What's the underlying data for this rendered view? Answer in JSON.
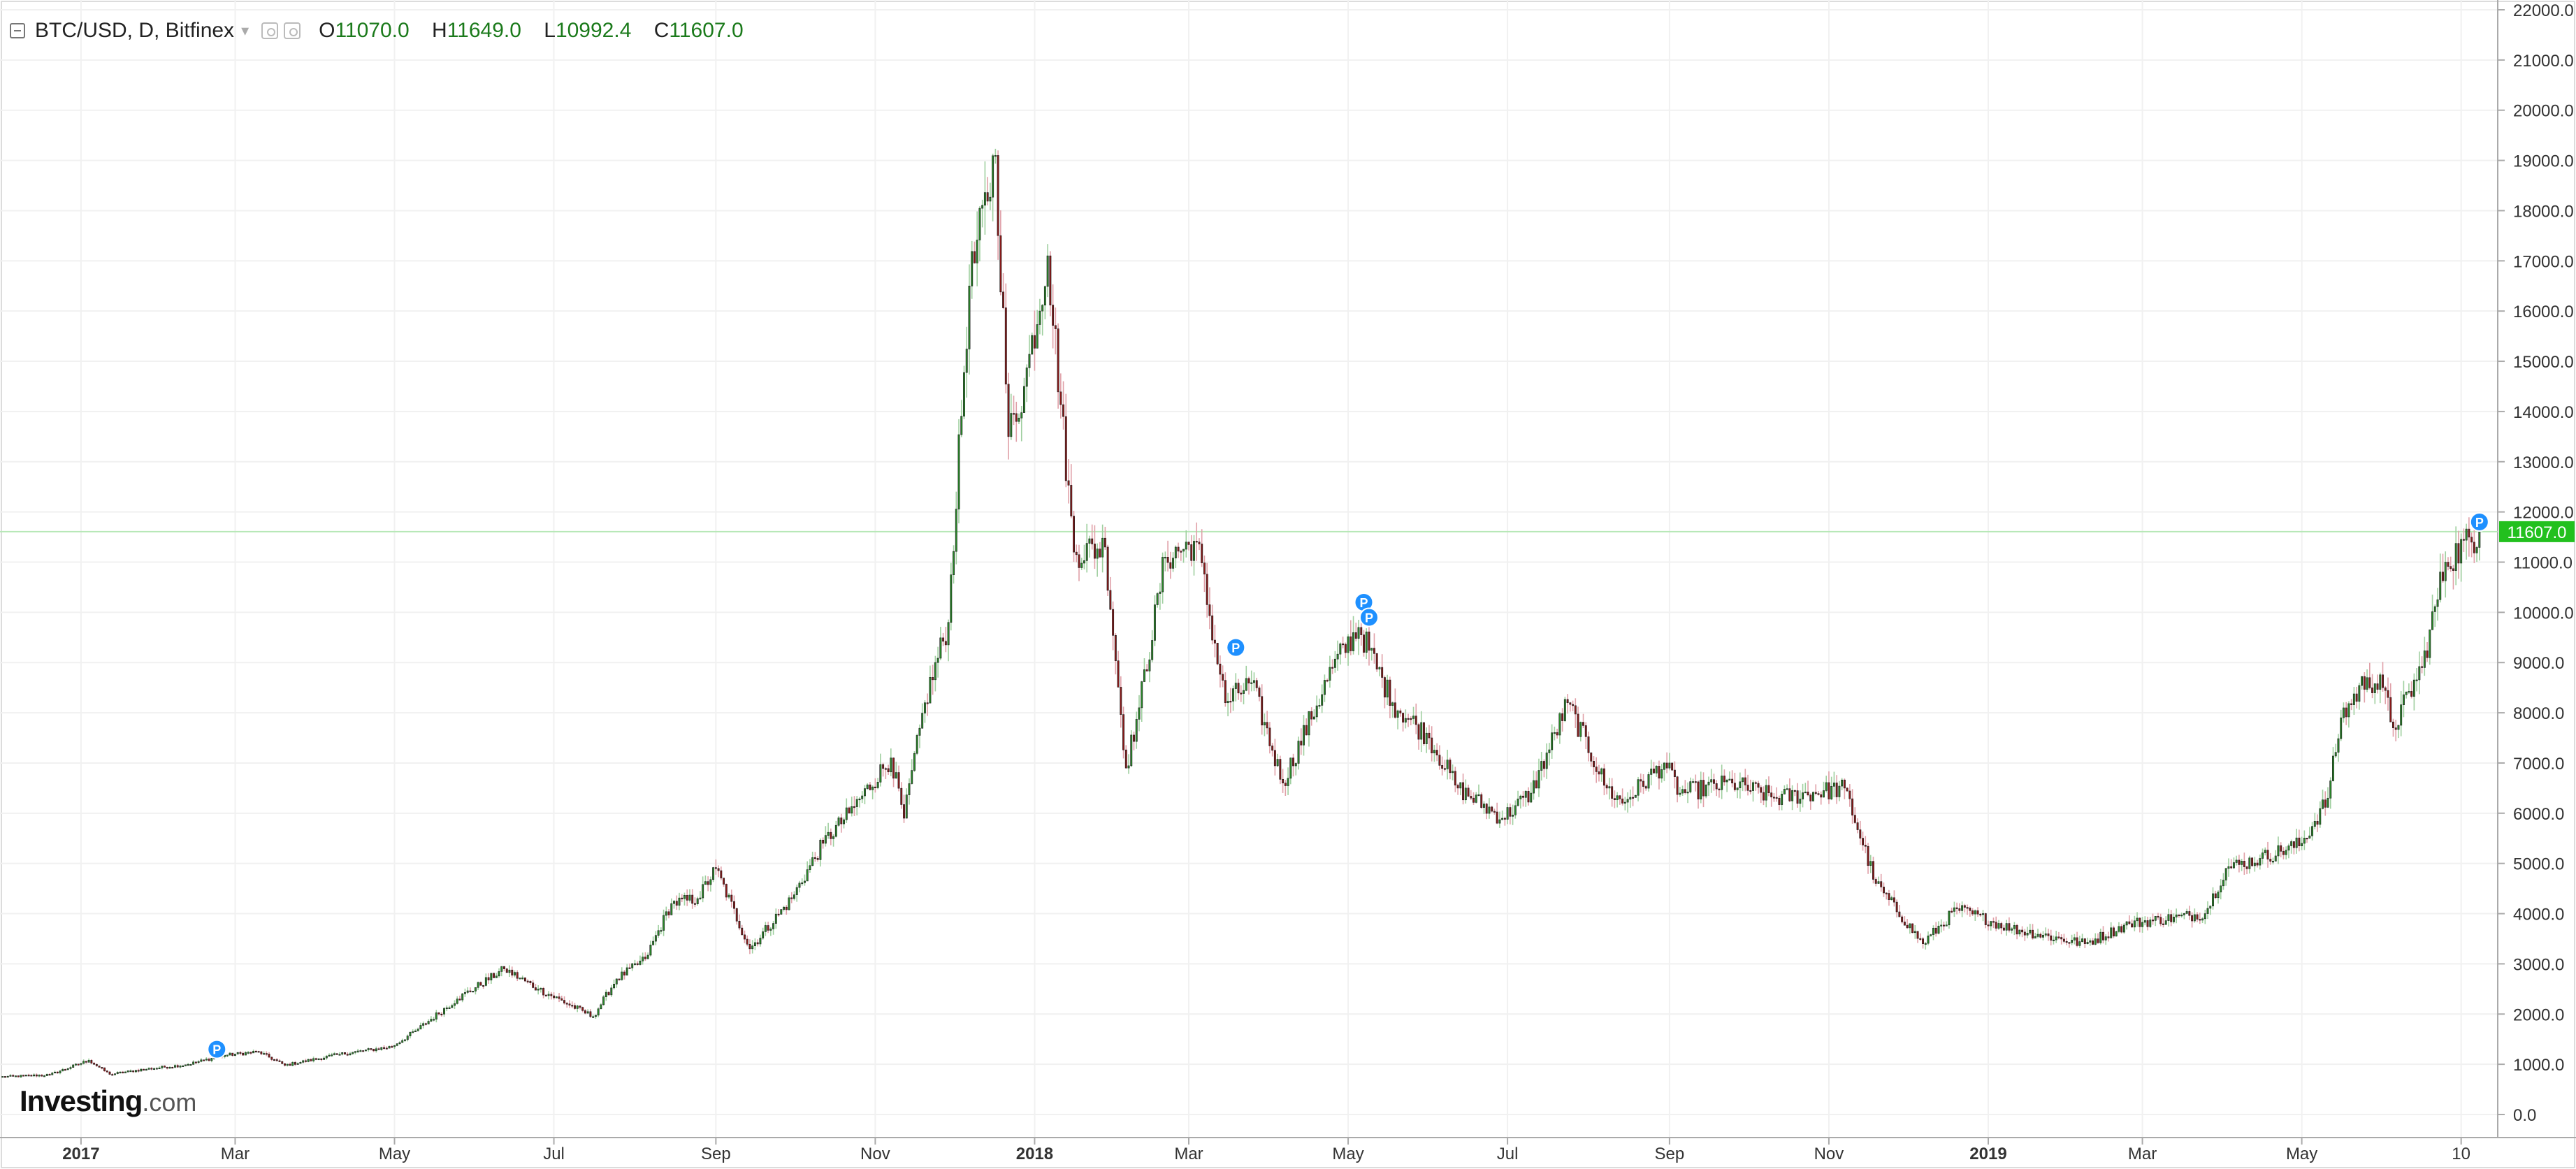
{
  "header": {
    "symbol": "BTC/USD, D, Bitfinex",
    "open_label": "O",
    "open": "11070.0",
    "high_label": "H",
    "high": "11649.0",
    "low_label": "L",
    "low": "10992.4",
    "close_label": "C",
    "close": "11607.0"
  },
  "brand": {
    "name": "Investing",
    "suffix": ".com"
  },
  "colors": {
    "up": "#2a8a2a",
    "down": "#8b1a1a",
    "price_line": "#b7e8b7",
    "price_tag": "#22c01e",
    "marker": "#1e90ff"
  },
  "chart_data": {
    "type": "candlestick",
    "interval": "D",
    "ylim": [
      0,
      22000
    ],
    "yticks": [
      "0.0",
      "1000.0",
      "2000.0",
      "3000.0",
      "4000.0",
      "5000.0",
      "6000.0",
      "7000.0",
      "8000.0",
      "9000.0",
      "10000.0",
      "11000.0",
      "12000.0",
      "13000.0",
      "14000.0",
      "15000.0",
      "16000.0",
      "17000.0",
      "18000.0",
      "19000.0",
      "20000.0",
      "21000.0",
      "22000.0"
    ],
    "xrange": [
      "2016-12-01",
      "2019-07-15"
    ],
    "xticks": [
      {
        "date": "2017-01-01",
        "label": "2017",
        "major": true
      },
      {
        "date": "2017-03-01",
        "label": "Mar"
      },
      {
        "date": "2017-05-01",
        "label": "May"
      },
      {
        "date": "2017-07-01",
        "label": "Jul"
      },
      {
        "date": "2017-09-01",
        "label": "Sep"
      },
      {
        "date": "2017-11-01",
        "label": "Nov"
      },
      {
        "date": "2018-01-01",
        "label": "2018",
        "major": true
      },
      {
        "date": "2018-03-01",
        "label": "Mar"
      },
      {
        "date": "2018-05-01",
        "label": "May"
      },
      {
        "date": "2018-07-01",
        "label": "Jul"
      },
      {
        "date": "2018-09-01",
        "label": "Sep"
      },
      {
        "date": "2018-11-01",
        "label": "Nov"
      },
      {
        "date": "2019-01-01",
        "label": "2019",
        "major": true
      },
      {
        "date": "2019-03-01",
        "label": "Mar"
      },
      {
        "date": "2019-05-01",
        "label": "May"
      },
      {
        "date": "2019-07-01",
        "label": "10"
      }
    ],
    "closes": [
      [
        "2016-12-01",
        750
      ],
      [
        "2016-12-20",
        790
      ],
      [
        "2017-01-04",
        1080
      ],
      [
        "2017-01-12",
        800
      ],
      [
        "2017-01-25",
        900
      ],
      [
        "2017-02-10",
        990
      ],
      [
        "2017-02-25",
        1180
      ],
      [
        "2017-03-10",
        1250
      ],
      [
        "2017-03-20",
        980
      ],
      [
        "2017-04-10",
        1200
      ],
      [
        "2017-04-30",
        1350
      ],
      [
        "2017-05-10",
        1700
      ],
      [
        "2017-05-25",
        2300
      ],
      [
        "2017-06-12",
        2900
      ],
      [
        "2017-06-25",
        2500
      ],
      [
        "2017-07-16",
        1950
      ],
      [
        "2017-07-25",
        2700
      ],
      [
        "2017-08-05",
        3100
      ],
      [
        "2017-08-15",
        4200
      ],
      [
        "2017-08-25",
        4300
      ],
      [
        "2017-09-01",
        4900
      ],
      [
        "2017-09-14",
        3300
      ],
      [
        "2017-09-30",
        4300
      ],
      [
        "2017-10-12",
        5400
      ],
      [
        "2017-10-22",
        6000
      ],
      [
        "2017-11-07",
        7100
      ],
      [
        "2017-11-12",
        5900
      ],
      [
        "2017-11-20",
        8200
      ],
      [
        "2017-11-29",
        9800
      ],
      [
        "2017-12-07",
        16500
      ],
      [
        "2017-12-17",
        19100
      ],
      [
        "2017-12-22",
        13500
      ],
      [
        "2017-12-28",
        14500
      ],
      [
        "2018-01-06",
        17100
      ],
      [
        "2018-01-16",
        11200
      ],
      [
        "2018-01-28",
        11300
      ],
      [
        "2018-02-05",
        6900
      ],
      [
        "2018-02-10",
        8100
      ],
      [
        "2018-02-20",
        11100
      ],
      [
        "2018-03-04",
        11400
      ],
      [
        "2018-03-15",
        8200
      ],
      [
        "2018-03-25",
        8600
      ],
      [
        "2018-04-06",
        6600
      ],
      [
        "2018-04-25",
        8900
      ],
      [
        "2018-05-05",
        9700
      ],
      [
        "2018-05-18",
        8200
      ],
      [
        "2018-06-01",
        7500
      ],
      [
        "2018-06-12",
        6500
      ],
      [
        "2018-06-29",
        5900
      ],
      [
        "2018-07-10",
        6400
      ],
      [
        "2018-07-24",
        8200
      ],
      [
        "2018-08-08",
        6500
      ],
      [
        "2018-08-14",
        6200
      ],
      [
        "2018-08-30",
        7000
      ],
      [
        "2018-09-05",
        6400
      ],
      [
        "2018-09-25",
        6600
      ],
      [
        "2018-10-12",
        6300
      ],
      [
        "2018-11-07",
        6500
      ],
      [
        "2018-11-19",
        4600
      ],
      [
        "2018-12-07",
        3400
      ],
      [
        "2018-12-20",
        4100
      ],
      [
        "2019-01-10",
        3700
      ],
      [
        "2019-02-07",
        3400
      ],
      [
        "2019-02-24",
        3800
      ],
      [
        "2019-03-25",
        4000
      ],
      [
        "2019-04-02",
        4900
      ],
      [
        "2019-04-15",
        5100
      ],
      [
        "2019-05-01",
        5400
      ],
      [
        "2019-05-11",
        6300
      ],
      [
        "2019-05-16",
        7900
      ],
      [
        "2019-05-26",
        8700
      ],
      [
        "2019-06-01",
        8500
      ],
      [
        "2019-06-05",
        7700
      ],
      [
        "2019-06-16",
        8900
      ],
      [
        "2019-06-25",
        11000
      ],
      [
        "2019-07-08",
        11607
      ]
    ],
    "current_price": "11607.0",
    "markers": [
      {
        "date": "2017-02-22",
        "price": 1300,
        "label": "P"
      },
      {
        "date": "2018-03-19",
        "price": 9300,
        "label": "P"
      },
      {
        "date": "2018-05-07",
        "price": 10200,
        "label": "P"
      },
      {
        "date": "2018-05-09",
        "price": 9900,
        "label": "P"
      },
      {
        "date": "2019-07-08",
        "price": 11800,
        "label": "P"
      }
    ]
  }
}
